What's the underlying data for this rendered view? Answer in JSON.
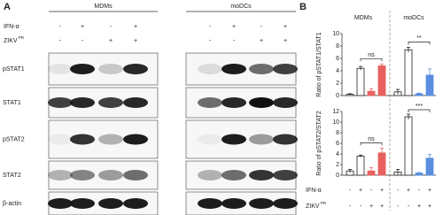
{
  "panel_a": {
    "label": "A",
    "groups": [
      "MDMs",
      "moDCs"
    ],
    "treatments": [
      {
        "name": "IFN-α",
        "signs": [
          "-",
          "+",
          "-",
          "+",
          "-",
          "+",
          "-",
          "+"
        ]
      },
      {
        "name": "ZIKV",
        "sup": "PR",
        "signs": [
          "-",
          "-",
          "+",
          "+",
          "-",
          "-",
          "+",
          "+"
        ]
      }
    ],
    "blots": [
      "pSTAT1",
      "STAT1",
      "pSTAT2",
      "STAT2",
      "β-actin"
    ]
  },
  "panel_b": {
    "label": "B",
    "groups": [
      "MDMs",
      "moDCs"
    ],
    "treatments": [
      {
        "name": "IFN-α",
        "signs": [
          "-",
          "+",
          "-",
          "+",
          "-",
          "+",
          "-",
          "+"
        ]
      },
      {
        "name": "ZIKV",
        "sup": "PR",
        "signs": [
          "-",
          "-",
          "+",
          "+",
          "-",
          "-",
          "+",
          "+"
        ]
      }
    ]
  },
  "chart_data": [
    {
      "type": "bar",
      "y_label": "Ratio of pSTAT1/STAT1",
      "values": [
        0.2,
        4.4,
        0.7,
        4.8,
        0.6,
        7.4,
        0.3,
        3.3
      ],
      "errors": [
        0.1,
        0.3,
        0.4,
        0.3,
        0.4,
        0.4,
        0.1,
        1.0
      ],
      "colors": [
        "#ffffff",
        "#ffffff",
        "#e8605e",
        "#e8605e",
        "#ffffff",
        "#ffffff",
        "#5b8ee0",
        "#5b8ee0"
      ],
      "ylim": [
        0,
        10
      ],
      "yticks": [
        0,
        2,
        4,
        6,
        8,
        10
      ],
      "annotations": [
        "ns",
        "**"
      ]
    },
    {
      "type": "bar",
      "y_label": "Ratio of pSTAT2/STAT2",
      "values": [
        0.8,
        3.6,
        0.8,
        4.2,
        0.6,
        11.0,
        0.4,
        3.2
      ],
      "errors": [
        0.3,
        0.2,
        0.6,
        0.9,
        0.5,
        0.5,
        0.1,
        0.7
      ],
      "colors": [
        "#ffffff",
        "#ffffff",
        "#e8605e",
        "#e8605e",
        "#ffffff",
        "#ffffff",
        "#5b8ee0",
        "#5b8ee0"
      ],
      "ylim": [
        0,
        12
      ],
      "yticks": [
        0,
        2,
        4,
        6,
        8,
        10,
        12
      ],
      "annotations": [
        "ns",
        "***"
      ]
    }
  ]
}
